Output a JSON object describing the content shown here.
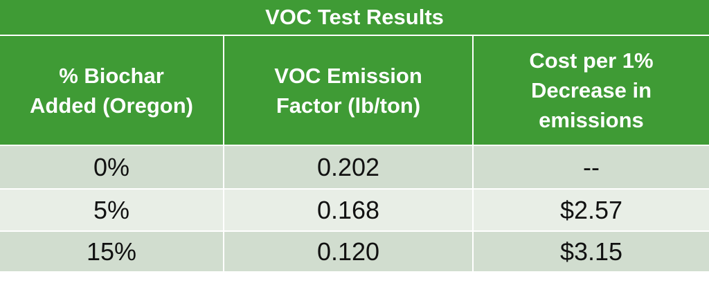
{
  "table": {
    "title": "VOC Test Results",
    "headers": [
      "% Biochar\nAdded (Oregon)",
      "VOC Emission\nFactor (lb/ton)",
      "Cost per 1%\nDecrease in\nemissions"
    ],
    "rows": [
      [
        "0%",
        "0.202",
        "--"
      ],
      [
        "5%",
        "0.168",
        "$2.57"
      ],
      [
        "15%",
        "0.120",
        "$3.15"
      ]
    ]
  },
  "colors": {
    "header_green": "#3f9b35",
    "row_shade_dark": "#d1ddcf",
    "row_shade_light": "#e8eee6"
  }
}
